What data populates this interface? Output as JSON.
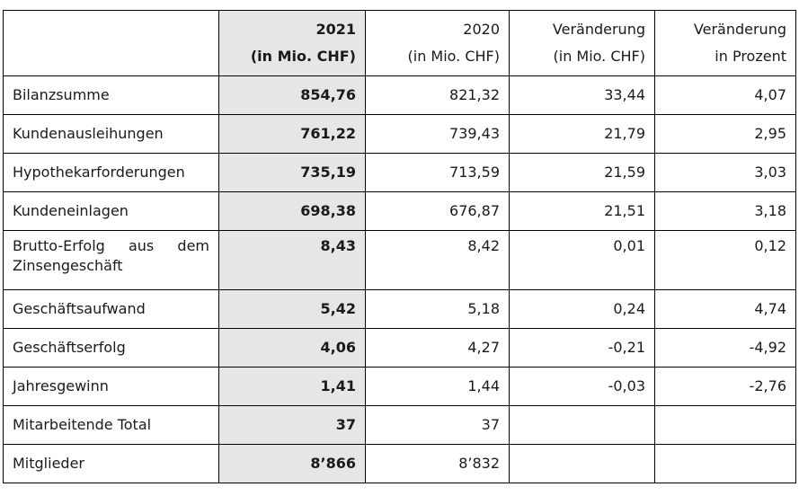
{
  "headers": {
    "y2021_line1": "2021",
    "y2021_line2": "(in Mio. CHF)",
    "y2020_line1": "2020",
    "y2020_line2": "(in Mio. CHF)",
    "diff_line1": "Veränderung",
    "diff_line2": "(in Mio. CHF)",
    "pct_line1": "Veränderung",
    "pct_line2": "in Prozent"
  },
  "rows": [
    {
      "label": "Bilanzsumme",
      "y2021": "854,76",
      "y2020": "821,32",
      "diff": "33,44",
      "pct": "4,07"
    },
    {
      "label": "Kundenausleihungen",
      "y2021": "761,22",
      "y2020": "739,43",
      "diff": "21,79",
      "pct": "2,95"
    },
    {
      "label": "Hypothekarforderungen",
      "y2021": "735,19",
      "y2020": "713,59",
      "diff": "21,59",
      "pct": "3,03"
    },
    {
      "label": "Kundeneinlagen",
      "y2021": "698,38",
      "y2020": "676,87",
      "diff": "21,51",
      "pct": "3,18"
    },
    {
      "label": "Brutto-Erfolg aus dem Zinsengeschäft",
      "y2021": "8,43",
      "y2020": "8,42",
      "diff": "0,01",
      "pct": "0,12"
    },
    {
      "label": "Geschäftsaufwand",
      "y2021": "5,42",
      "y2020": "5,18",
      "diff": "0,24",
      "pct": "4,74"
    },
    {
      "label": "Geschäftserfolg",
      "y2021": "4,06",
      "y2020": "4,27",
      "diff": "-0,21",
      "pct": "-4,92"
    },
    {
      "label": "Jahresgewinn",
      "y2021": "1,41",
      "y2020": "1,44",
      "diff": "-0,03",
      "pct": "-2,76"
    },
    {
      "label": "Mitarbeitende Total",
      "y2021": "37",
      "y2020": "37",
      "diff": "",
      "pct": ""
    },
    {
      "label": "Mitglieder",
      "y2021": "8’866",
      "y2020": "8’832",
      "diff": "",
      "pct": ""
    }
  ]
}
